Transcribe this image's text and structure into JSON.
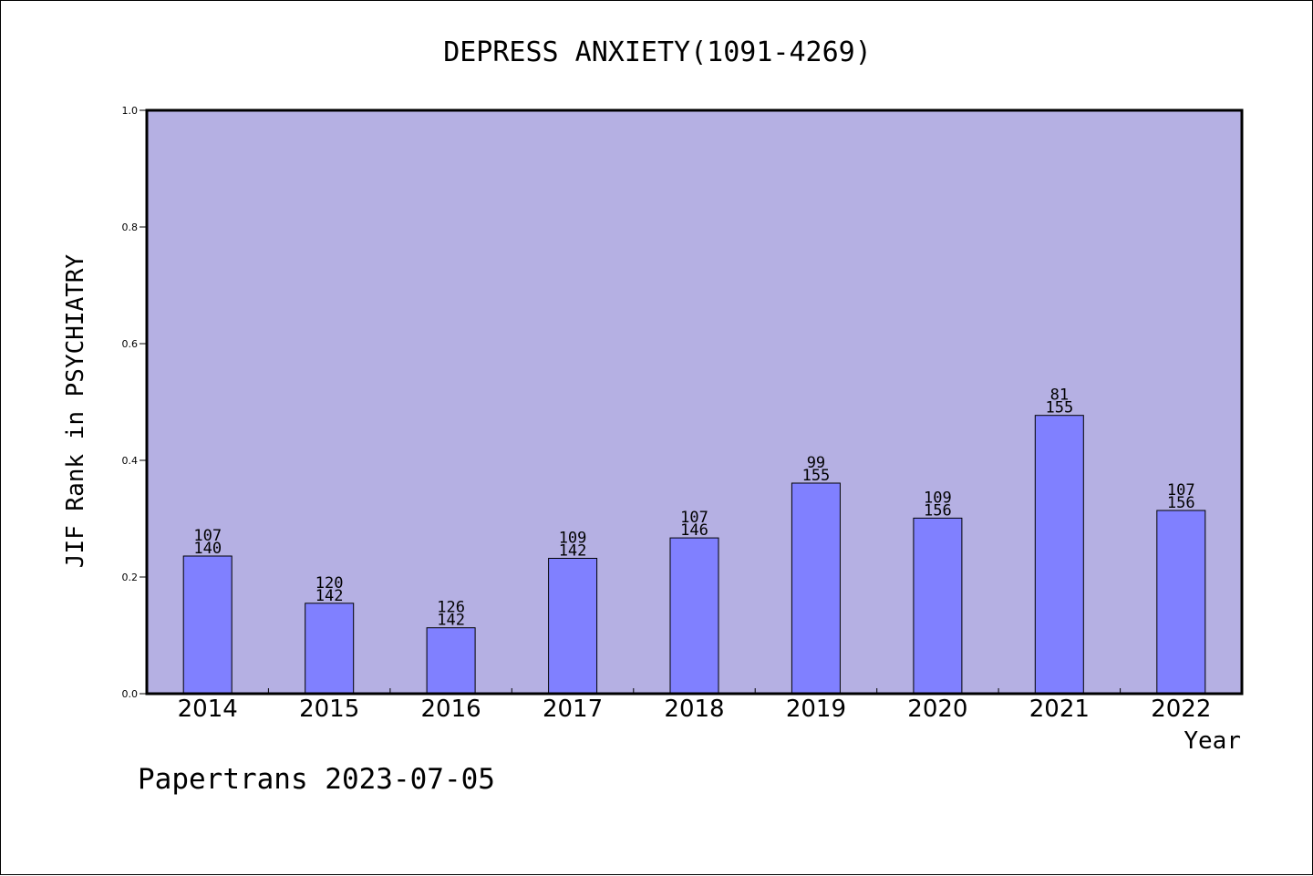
{
  "colors": {
    "plot_background": "#b5b0e3",
    "bar_fill": "#8080ff",
    "axis": "#000000",
    "text": "#000000"
  },
  "footer": {
    "watermark": "Papertrans 2023-07-05"
  },
  "chart_data": {
    "type": "bar",
    "title": "DEPRESS ANXIETY(1091-4269)",
    "xlabel": "Year",
    "ylabel": "JIF Rank in PSYCHIATRY",
    "ylim": [
      0,
      1
    ],
    "yticks": [
      "0.0",
      "0.2",
      "0.4",
      "0.6",
      "0.8",
      "1.0"
    ],
    "grid": false,
    "categories": [
      "2014",
      "2015",
      "2016",
      "2017",
      "2018",
      "2019",
      "2020",
      "2021",
      "2022"
    ],
    "values": [
      0.236,
      0.155,
      0.113,
      0.232,
      0.267,
      0.361,
      0.301,
      0.477,
      0.314
    ],
    "rank": [
      "107",
      "120",
      "126",
      "109",
      "107",
      "99",
      "109",
      "81",
      "107"
    ],
    "total": [
      "140",
      "142",
      "142",
      "142",
      "146",
      "155",
      "156",
      "155",
      "156"
    ]
  }
}
